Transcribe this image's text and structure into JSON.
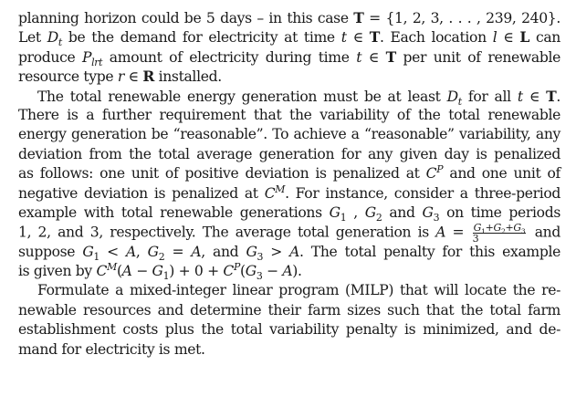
{
  "paragraph_1": {
    "line_1": "planning horizon could be 5 days – in this case T = {1, 2, 3, . . . , 239, 240}.",
    "line_2": "Let D_t be the demand for electricity at time t ∈ T. Each location l ∈ L can",
    "line_3": "produce P_lrt amount of electricity during time t ∈ T per unit of renewable",
    "line_4": "resource type r ∈ R installed."
  },
  "paragraph_2": {
    "line_1": "The total renewable energy generation must be at least D_t for all t ∈ T.",
    "line_2": "There is a further requirement that the variability of the total renewable",
    "line_3": "energy generation be “reasonable”. To achieve a “reasonable” variability, any",
    "line_4": "deviation from the total average generation for any given day is penalized",
    "line_5": "as follows: one unit of positive deviation is penalized at C^P and one unit of",
    "line_6": "negative deviation is penalized at C^M. For instance, consider a three-period",
    "line_7": "example with total renewable generations G1 , G2 and G3 on time periods",
    "line_8": "1, 2, and 3, respectively. The average total generation is A = (G1+G2+G3)/3 and",
    "line_9": "suppose G1 < A, G2 = A, and G3 > A. The total penalty for this example",
    "line_10": "is given by C^M(A − G1) + 0 + C^P(G3 − A)."
  },
  "paragraph_3": {
    "line_1": "Formulate a mixed-integer linear program (MILP) that will locate the re-",
    "line_2": "newable resources and determine their farm sizes such that the total farm",
    "line_3": "establishment costs plus the total variability penalty is minimized, and de-",
    "line_4": "mand for electricity is met."
  }
}
